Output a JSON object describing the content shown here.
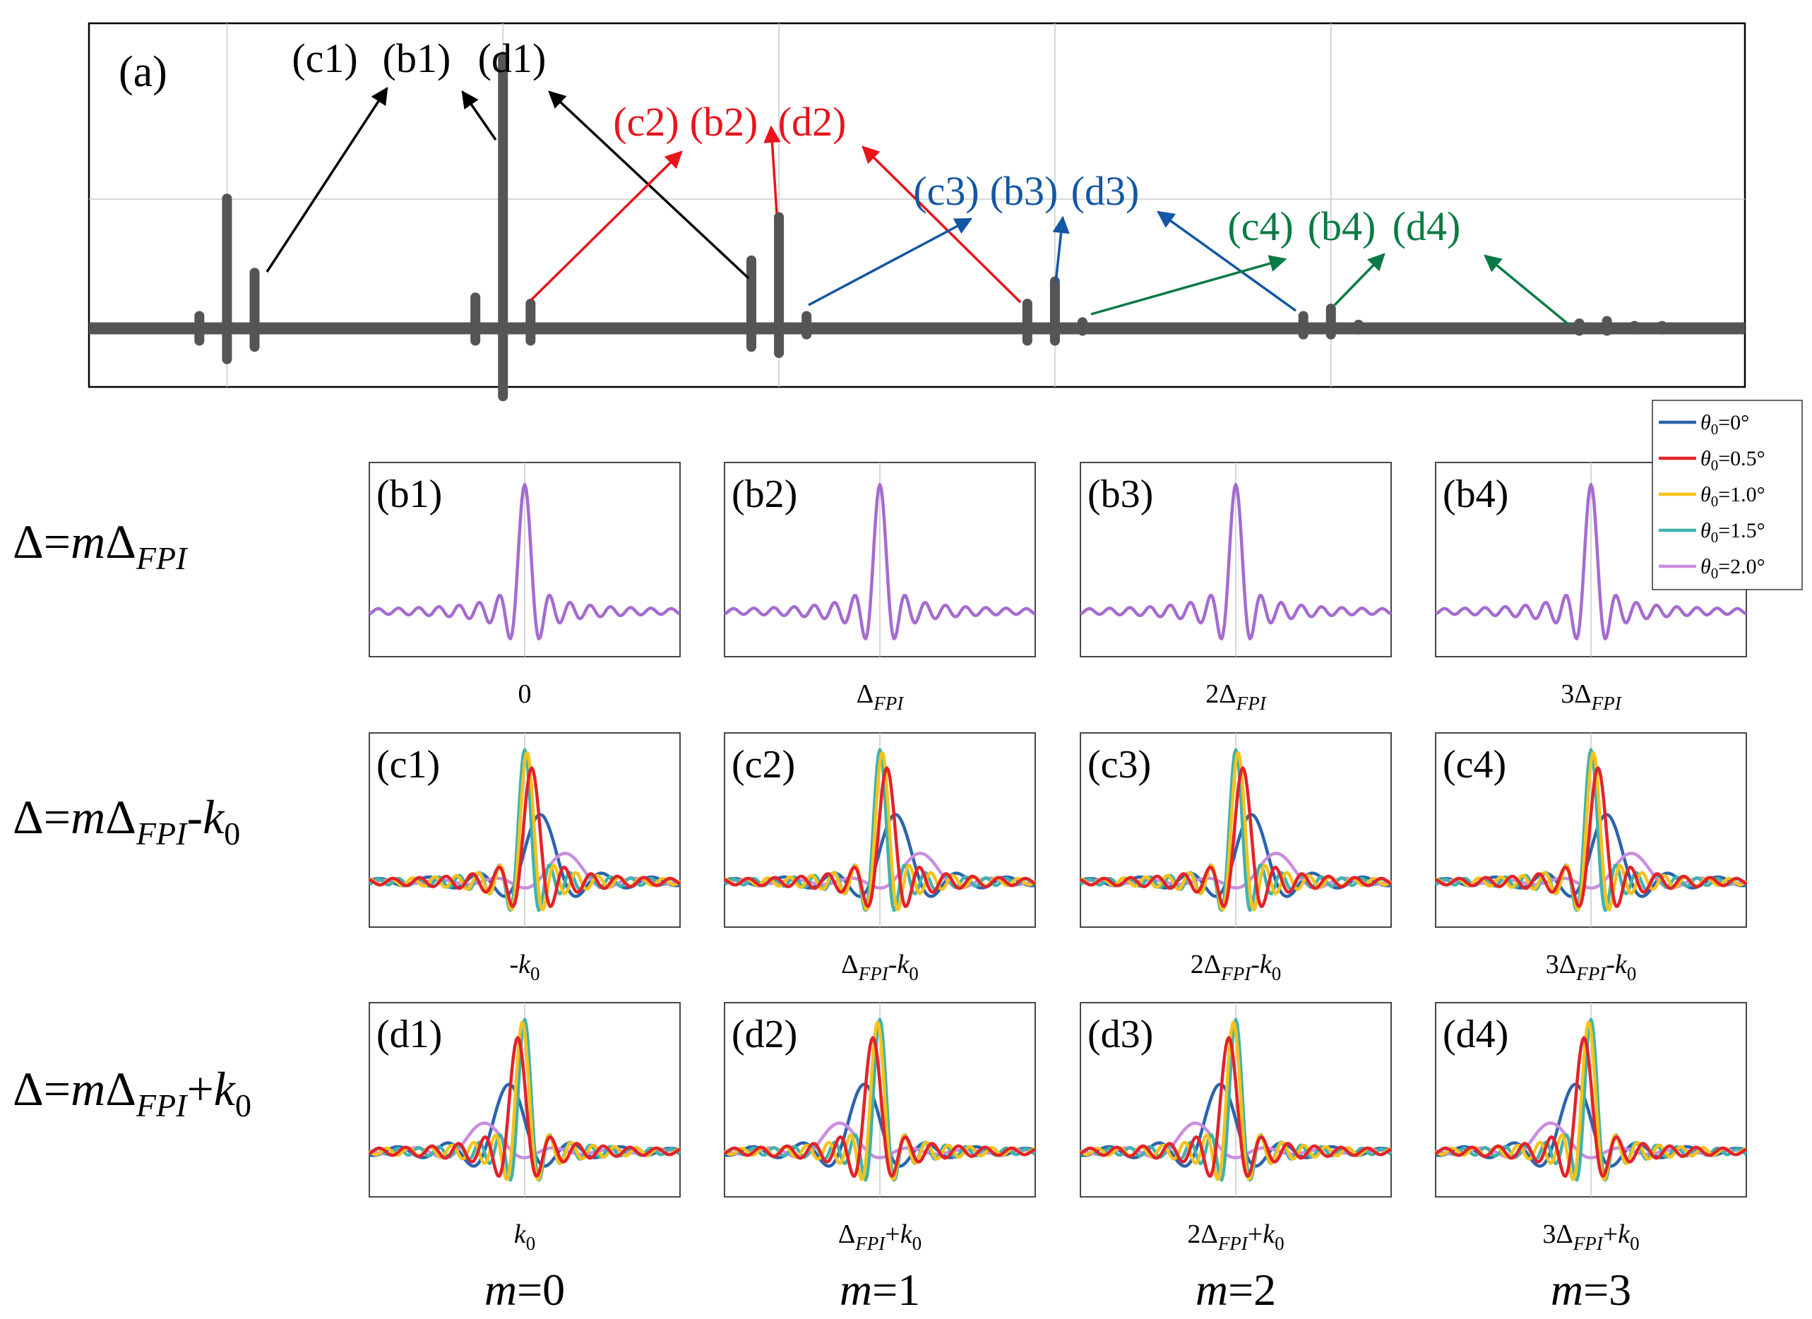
{
  "figure": {
    "panel_a_label": "(a)",
    "m_labels": [
      "m=0",
      "m=1",
      "m=2",
      "m=3"
    ],
    "row_labels": [
      {
        "pre": "Δ=",
        "m": "m",
        "delta": "Δ",
        "sub": "FPI",
        "post": "",
        "k": ""
      },
      {
        "pre": "Δ=",
        "m": "m",
        "delta": "Δ",
        "sub": "FPI",
        "post": "-",
        "k": "k",
        "ksub": "0"
      },
      {
        "pre": "Δ=",
        "m": "m",
        "delta": "Δ",
        "sub": "FPI",
        "post": "+",
        "k": "k",
        "ksub": "0"
      }
    ]
  },
  "colors": {
    "black": "#000000",
    "red": "#e8141a",
    "blue": "#1256a5",
    "green": "#0a7a45",
    "spike": "#555555",
    "grid": "#cccccc"
  },
  "chart_data": [
    {
      "id": "a",
      "type": "bar",
      "title": "(a)",
      "description_type": "spectrum of spike pairs",
      "baseline": 0,
      "ylim": [
        -1,
        3
      ],
      "xlim": [
        0,
        6
      ],
      "grid": true,
      "spikes": [
        {
          "x": 0.4,
          "ymin": -0.1,
          "ymax": 0.1
        },
        {
          "x": 0.5,
          "ymin": -0.25,
          "ymax": 1.05
        },
        {
          "x": 0.6,
          "ymin": -0.15,
          "ymax": 0.45
        },
        {
          "x": 1.4,
          "ymin": -0.1,
          "ymax": 0.25
        },
        {
          "x": 1.5,
          "ymin": -0.55,
          "ymax": 2.2
        },
        {
          "x": 1.6,
          "ymin": -0.1,
          "ymax": 0.2
        },
        {
          "x": 2.4,
          "ymin": -0.15,
          "ymax": 0.55
        },
        {
          "x": 2.5,
          "ymin": -0.2,
          "ymax": 0.9
        },
        {
          "x": 2.6,
          "ymin": -0.05,
          "ymax": 0.1
        },
        {
          "x": 3.4,
          "ymin": -0.1,
          "ymax": 0.2
        },
        {
          "x": 3.5,
          "ymin": -0.1,
          "ymax": 0.38
        },
        {
          "x": 3.6,
          "ymin": -0.02,
          "ymax": 0.05
        },
        {
          "x": 4.4,
          "ymin": -0.05,
          "ymax": 0.1
        },
        {
          "x": 4.5,
          "ymin": -0.05,
          "ymax": 0.16
        },
        {
          "x": 4.6,
          "ymin": -0.01,
          "ymax": 0.03
        },
        {
          "x": 5.4,
          "ymin": -0.02,
          "ymax": 0.04
        },
        {
          "x": 5.5,
          "ymin": -0.02,
          "ymax": 0.06
        },
        {
          "x": 5.6,
          "ymin": -0.01,
          "ymax": 0.02
        },
        {
          "x": 5.7,
          "ymin": -0.01,
          "ymax": 0.02
        }
      ],
      "annotations": [
        {
          "group": "1",
          "color": "black",
          "labels": [
            "(c1)",
            "(b1)",
            "(d1)"
          ]
        },
        {
          "group": "2",
          "color": "red",
          "labels": [
            "(c2)",
            "(b2)",
            "(d2)"
          ]
        },
        {
          "group": "3",
          "color": "blue",
          "labels": [
            "(c3)",
            "(b3)",
            "(d3)"
          ]
        },
        {
          "group": "4",
          "color": "green",
          "labels": [
            "(c4)",
            "(b4)",
            "(d4)"
          ]
        }
      ]
    },
    {
      "id": "subplots",
      "type": "line",
      "rows": [
        "b",
        "c",
        "d"
      ],
      "columns": 4,
      "panel_labels": [
        [
          "(b1)",
          "(b2)",
          "(b3)",
          "(b4)"
        ],
        [
          "(c1)",
          "(c2)",
          "(c3)",
          "(c4)"
        ],
        [
          "(d1)",
          "(d2)",
          "(d3)",
          "(d4)"
        ]
      ],
      "xlabels": [
        [
          {
            "pre": "0",
            "sub": "",
            "post": "",
            "k": "",
            "ksub": ""
          },
          {
            "pre": "Δ",
            "sub": "FPI",
            "post": "",
            "k": "",
            "ksub": ""
          },
          {
            "pre": "2Δ",
            "sub": "FPI",
            "post": "",
            "k": "",
            "ksub": ""
          },
          {
            "pre": "3Δ",
            "sub": "FPI",
            "post": "",
            "k": "",
            "ksub": ""
          }
        ],
        [
          {
            "pre": "-",
            "sub": "",
            "post": "",
            "k": "k",
            "ksub": "0"
          },
          {
            "pre": "Δ",
            "sub": "FPI",
            "post": "-",
            "k": "k",
            "ksub": "0"
          },
          {
            "pre": "2Δ",
            "sub": "FPI",
            "post": "-",
            "k": "k",
            "ksub": "0"
          },
          {
            "pre": "3Δ",
            "sub": "FPI",
            "post": "-",
            "k": "k",
            "ksub": "0"
          }
        ],
        [
          {
            "pre": "",
            "sub": "",
            "post": "",
            "k": "k",
            "ksub": "0"
          },
          {
            "pre": "Δ",
            "sub": "FPI",
            "post": "+",
            "k": "k",
            "ksub": "0"
          },
          {
            "pre": "2Δ",
            "sub": "FPI",
            "post": "+",
            "k": "k",
            "ksub": "0"
          },
          {
            "pre": "3Δ",
            "sub": "FPI",
            "post": "+",
            "k": "k",
            "ksub": "0"
          }
        ]
      ],
      "xlim": [
        -10,
        10
      ],
      "ylim": [
        -0.35,
        1.15
      ],
      "legend_position": "top-right",
      "series": [
        {
          "name": "θ0=0°",
          "theta": "0",
          "color": "#2a64ad",
          "shift": 1.0,
          "width": 1.6,
          "amp": 0.52
        },
        {
          "name": "θ0=0.5°",
          "theta": "0.5",
          "color": "#e3222b",
          "shift": 0.45,
          "width": 0.85,
          "amp": 0.88
        },
        {
          "name": "θ0=1.0°",
          "theta": "1.0",
          "color": "#f7c21a",
          "shift": 0.15,
          "width": 0.7,
          "amp": 1.0
        },
        {
          "name": "θ0=1.5°",
          "theta": "1.5",
          "color": "#3fb3ac",
          "shift": 0.0,
          "width": 0.65,
          "amp": 1.02
        },
        {
          "name": "θ0=2.0°",
          "theta": "2.0",
          "color": "#c98de0",
          "shift": 2.6,
          "width": 1.8,
          "amp": 0.22
        }
      ],
      "row_b_color": "#a56bd0",
      "theta_symbol": "θ",
      "theta_sub": "0",
      "legend_suffix": "°"
    }
  ]
}
